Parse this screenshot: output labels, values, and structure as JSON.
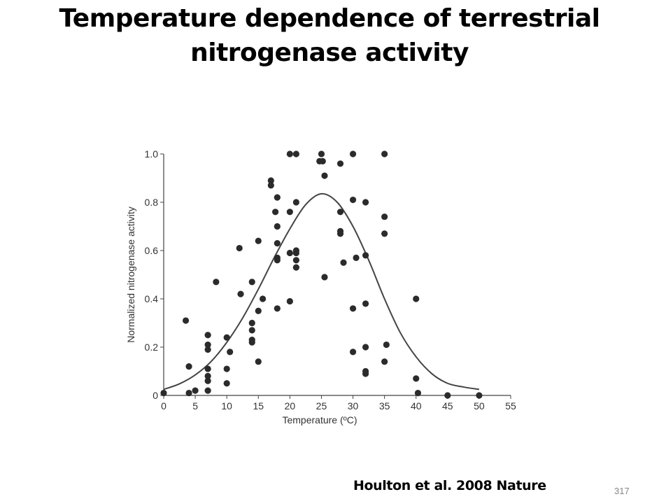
{
  "slide": {
    "title_line1": "Temperature dependence of terrestrial",
    "title_line2": "nitrogenase activity",
    "citation": "Houlton et al. 2008 Nature",
    "page_number": "317"
  },
  "chart_data": {
    "type": "scatter",
    "xlabel": "Temperature (ºC)",
    "ylabel": "Normalized nitrogenase activity",
    "xlim": [
      0,
      55
    ],
    "ylim": [
      0,
      1.0
    ],
    "xticks": [
      0,
      5,
      10,
      15,
      20,
      25,
      30,
      35,
      40,
      45,
      50,
      55
    ],
    "yticks": [
      0,
      0.2,
      0.4,
      0.6,
      0.8,
      1.0
    ],
    "ytick_labels": [
      "0",
      "0.2",
      "0.4",
      "0.6",
      "0.8",
      "1.0"
    ],
    "grid": false,
    "marker_color": "#2b2b2b",
    "curve_color": "#444444",
    "points": [
      [
        0,
        0.01
      ],
      [
        3.5,
        0.31
      ],
      [
        4,
        0.12
      ],
      [
        4,
        0.01
      ],
      [
        5,
        0.02
      ],
      [
        7,
        0.25
      ],
      [
        7,
        0.21
      ],
      [
        7,
        0.19
      ],
      [
        7,
        0.11
      ],
      [
        7,
        0.08
      ],
      [
        7,
        0.06
      ],
      [
        7,
        0.02
      ],
      [
        8.3,
        0.47
      ],
      [
        10,
        0.24
      ],
      [
        10,
        0.11
      ],
      [
        10,
        0.05
      ],
      [
        10.5,
        0.18
      ],
      [
        12,
        0.61
      ],
      [
        12.2,
        0.42
      ],
      [
        14,
        0.47
      ],
      [
        14,
        0.3
      ],
      [
        14,
        0.27
      ],
      [
        14,
        0.23
      ],
      [
        14,
        0.22
      ],
      [
        15,
        0.64
      ],
      [
        15,
        0.35
      ],
      [
        15,
        0.14
      ],
      [
        15.7,
        0.4
      ],
      [
        17,
        0.89
      ],
      [
        17,
        0.87
      ],
      [
        17.7,
        0.76
      ],
      [
        18,
        0.82
      ],
      [
        18,
        0.7
      ],
      [
        18,
        0.63
      ],
      [
        18,
        0.57
      ],
      [
        18,
        0.56
      ],
      [
        18,
        0.36
      ],
      [
        20,
        1.0
      ],
      [
        20,
        0.76
      ],
      [
        20,
        0.59
      ],
      [
        20,
        0.39
      ],
      [
        21,
        1.0
      ],
      [
        21,
        0.8
      ],
      [
        21,
        0.6
      ],
      [
        21,
        0.59
      ],
      [
        21,
        0.56
      ],
      [
        21,
        0.53
      ],
      [
        24.7,
        0.97
      ],
      [
        25,
        1.0
      ],
      [
        25.2,
        0.97
      ],
      [
        25.5,
        0.91
      ],
      [
        25.5,
        0.49
      ],
      [
        28,
        0.96
      ],
      [
        28,
        0.76
      ],
      [
        28,
        0.68
      ],
      [
        28,
        0.67
      ],
      [
        28.5,
        0.55
      ],
      [
        30,
        1.0
      ],
      [
        30,
        0.81
      ],
      [
        30,
        0.36
      ],
      [
        30,
        0.18
      ],
      [
        30.5,
        0.57
      ],
      [
        32,
        0.8
      ],
      [
        32,
        0.58
      ],
      [
        32,
        0.38
      ],
      [
        32,
        0.2
      ],
      [
        32,
        0.1
      ],
      [
        32,
        0.09
      ],
      [
        35,
        1.0
      ],
      [
        35,
        0.74
      ],
      [
        35,
        0.67
      ],
      [
        35,
        0.14
      ],
      [
        35.3,
        0.21
      ],
      [
        40,
        0.4
      ],
      [
        40,
        0.07
      ],
      [
        40.3,
        0.01
      ],
      [
        45,
        0
      ],
      [
        50,
        0
      ]
    ],
    "curve": {
      "x": [
        0,
        2.5,
        5,
        7.5,
        10,
        12.5,
        15,
        17.5,
        20,
        22.5,
        25,
        27.5,
        30,
        32.5,
        35,
        37.5,
        40,
        42.5,
        45,
        47.5,
        50
      ],
      "y": [
        0.025,
        0.048,
        0.085,
        0.14,
        0.22,
        0.32,
        0.44,
        0.57,
        0.69,
        0.79,
        0.835,
        0.8,
        0.7,
        0.56,
        0.4,
        0.26,
        0.16,
        0.09,
        0.05,
        0.035,
        0.025
      ]
    }
  }
}
